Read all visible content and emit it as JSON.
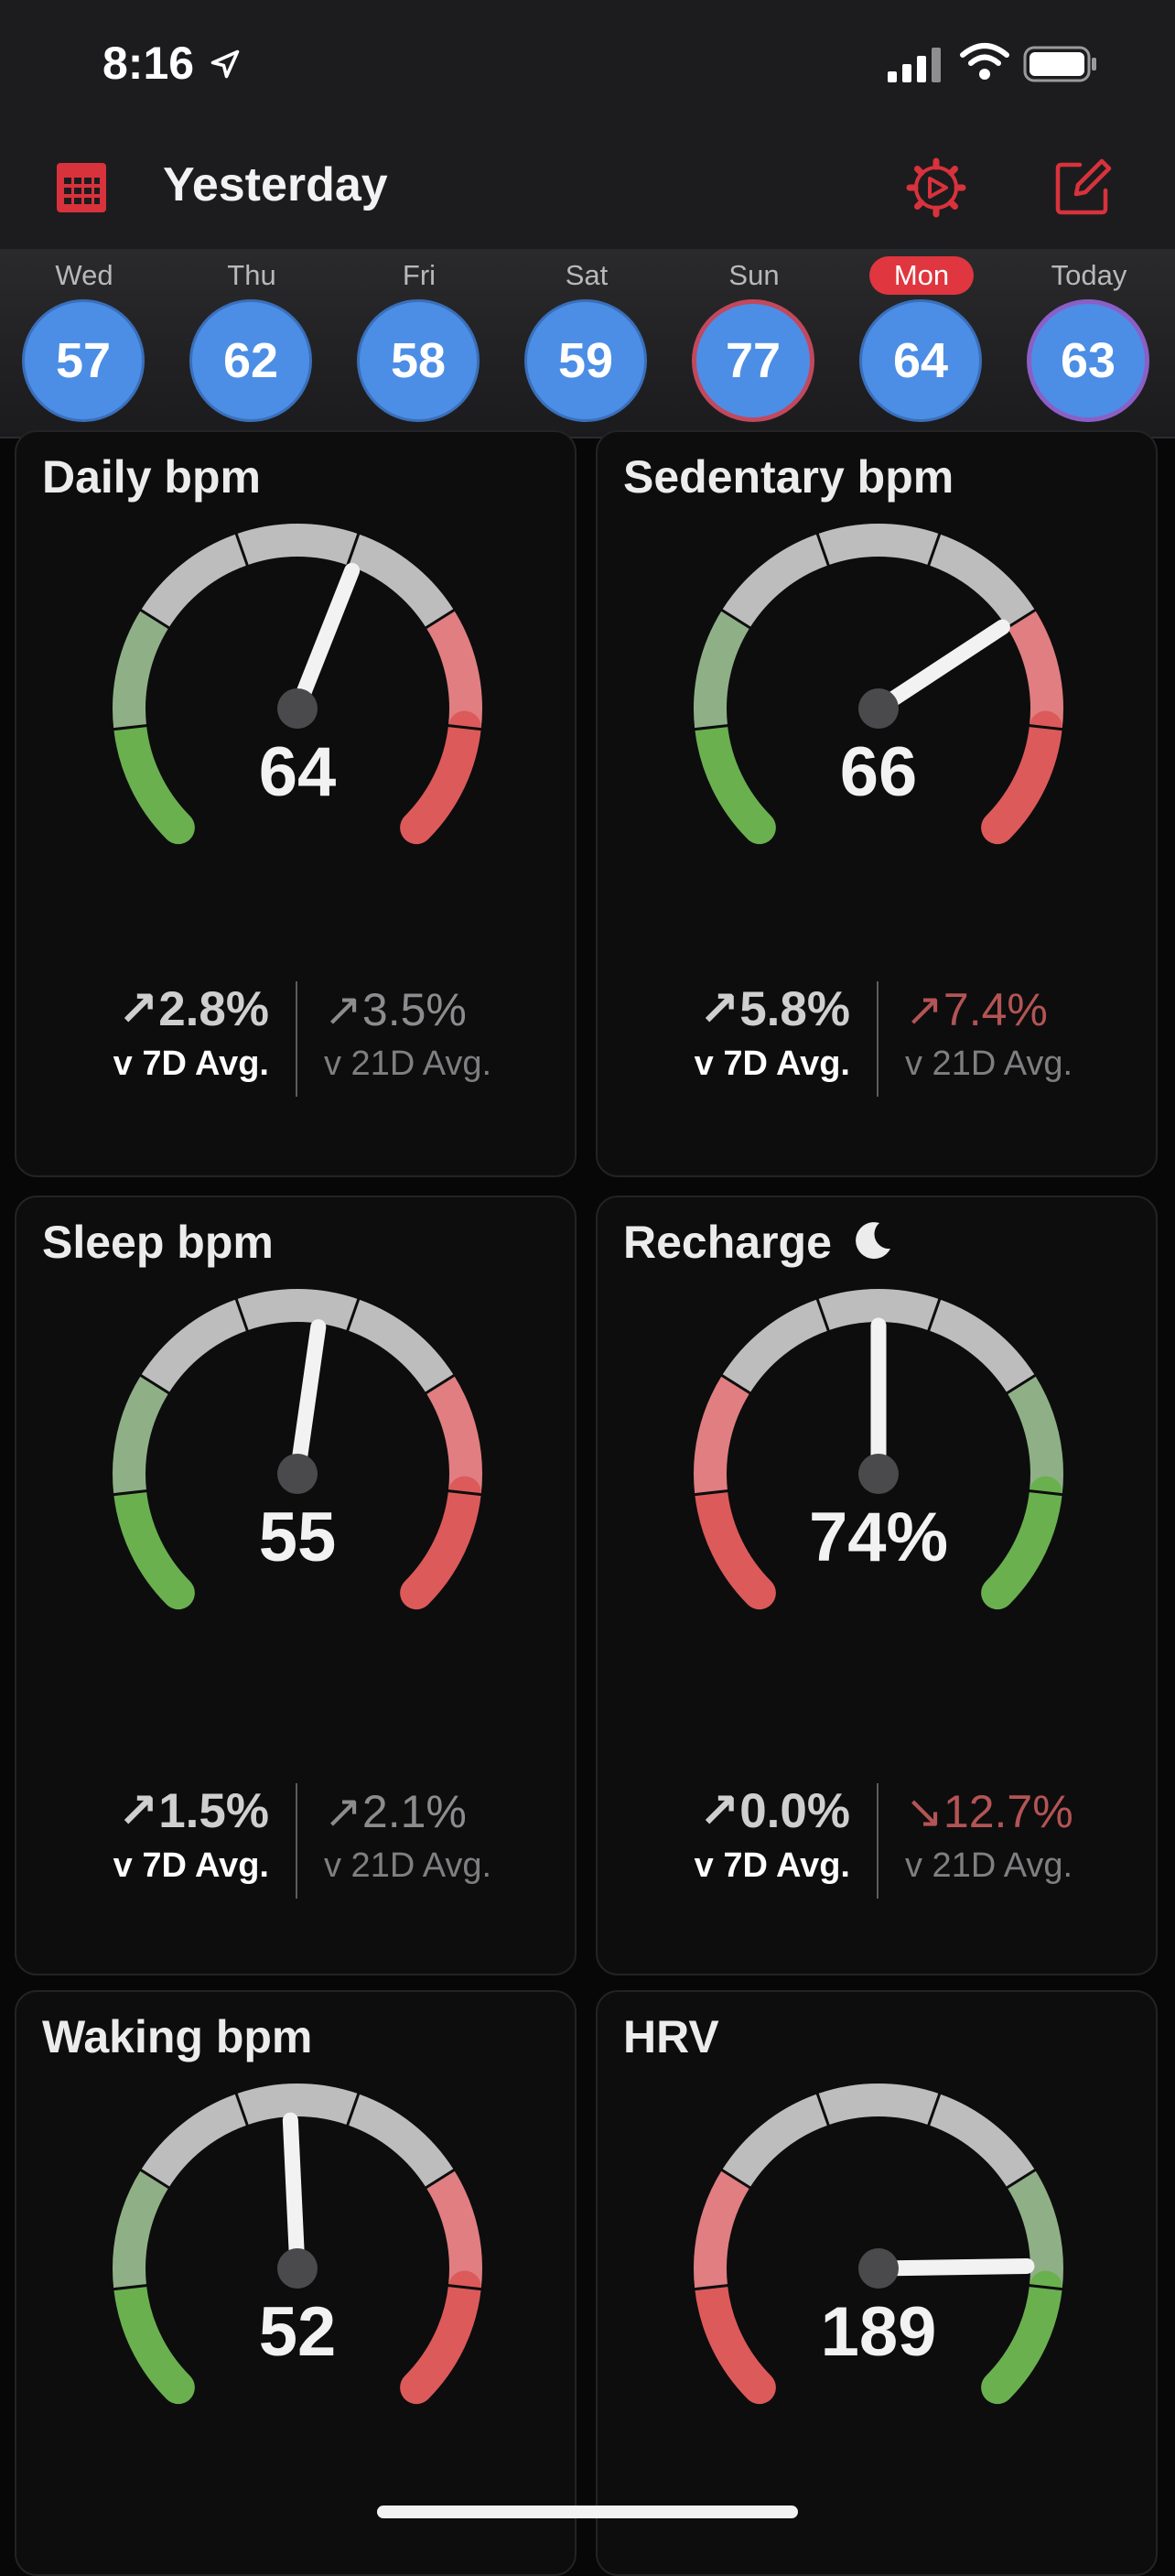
{
  "status_bar": {
    "time": "8:16"
  },
  "header": {
    "title": "Yesterday"
  },
  "days": [
    {
      "label": "Wed",
      "value": "57",
      "selected": false,
      "ring": "none"
    },
    {
      "label": "Thu",
      "value": "62",
      "selected": false,
      "ring": "none"
    },
    {
      "label": "Fri",
      "value": "58",
      "selected": false,
      "ring": "none"
    },
    {
      "label": "Sat",
      "value": "59",
      "selected": false,
      "ring": "none"
    },
    {
      "label": "Sun",
      "value": "77",
      "selected": false,
      "ring": "warn"
    },
    {
      "label": "Mon",
      "value": "64",
      "selected": true,
      "ring": "none"
    },
    {
      "label": "Today",
      "value": "63",
      "selected": false,
      "ring": "today"
    }
  ],
  "cards": [
    {
      "title": "Daily bpm",
      "value": "64",
      "needle_fraction": 0.58,
      "scheme": "green-to-red",
      "moon": false,
      "v7": {
        "pct": "↗2.8%",
        "label": "v 7D Avg."
      },
      "v21": {
        "pct": "↗3.5%",
        "label": "v 21D Avg.",
        "bad": false
      }
    },
    {
      "title": "Sedentary bpm",
      "value": "66",
      "needle_fraction": 0.71,
      "scheme": "green-to-red",
      "moon": false,
      "v7": {
        "pct": "↗5.8%",
        "label": "v 7D Avg."
      },
      "v21": {
        "pct": "↗7.4%",
        "label": "v 21D Avg.",
        "bad": true
      }
    },
    {
      "title": "Sleep bpm",
      "value": "55",
      "needle_fraction": 0.53,
      "scheme": "green-to-red",
      "moon": false,
      "v7": {
        "pct": "↗1.5%",
        "label": "v 7D Avg."
      },
      "v21": {
        "pct": "↗2.1%",
        "label": "v 21D Avg.",
        "bad": false
      }
    },
    {
      "title": "Recharge",
      "value": "74%",
      "needle_fraction": 0.5,
      "scheme": "red-to-green",
      "moon": true,
      "v7": {
        "pct": "↗0.0%",
        "label": "v 7D Avg."
      },
      "v21": {
        "pct": "↘12.7%",
        "label": "v 21D Avg.",
        "bad": true
      }
    },
    {
      "title": "Waking bpm",
      "value": "52",
      "needle_fraction": 0.49,
      "scheme": "green-to-red",
      "moon": false,
      "v7": null,
      "v21": null
    },
    {
      "title": "HRV",
      "value": "189",
      "needle_fraction": 0.83,
      "scheme": "red-to-green",
      "moon": false,
      "v7": null,
      "v21": null
    }
  ],
  "colors": {
    "accent_red": "#e0363f",
    "day_circle": "#4c8ee6",
    "gauge_gray": "#bdbdbd",
    "gauge_green": "#6ab04f",
    "gauge_green_light": "#8fb086",
    "gauge_red": "#dd5a5a",
    "gauge_red_light": "#e07e81"
  },
  "icons": [
    "location-arrow-icon",
    "cellular-signal-icon",
    "wifi-icon",
    "battery-icon",
    "calendar-icon",
    "settings-gear-icon",
    "edit-compose-icon",
    "moon-icon"
  ]
}
